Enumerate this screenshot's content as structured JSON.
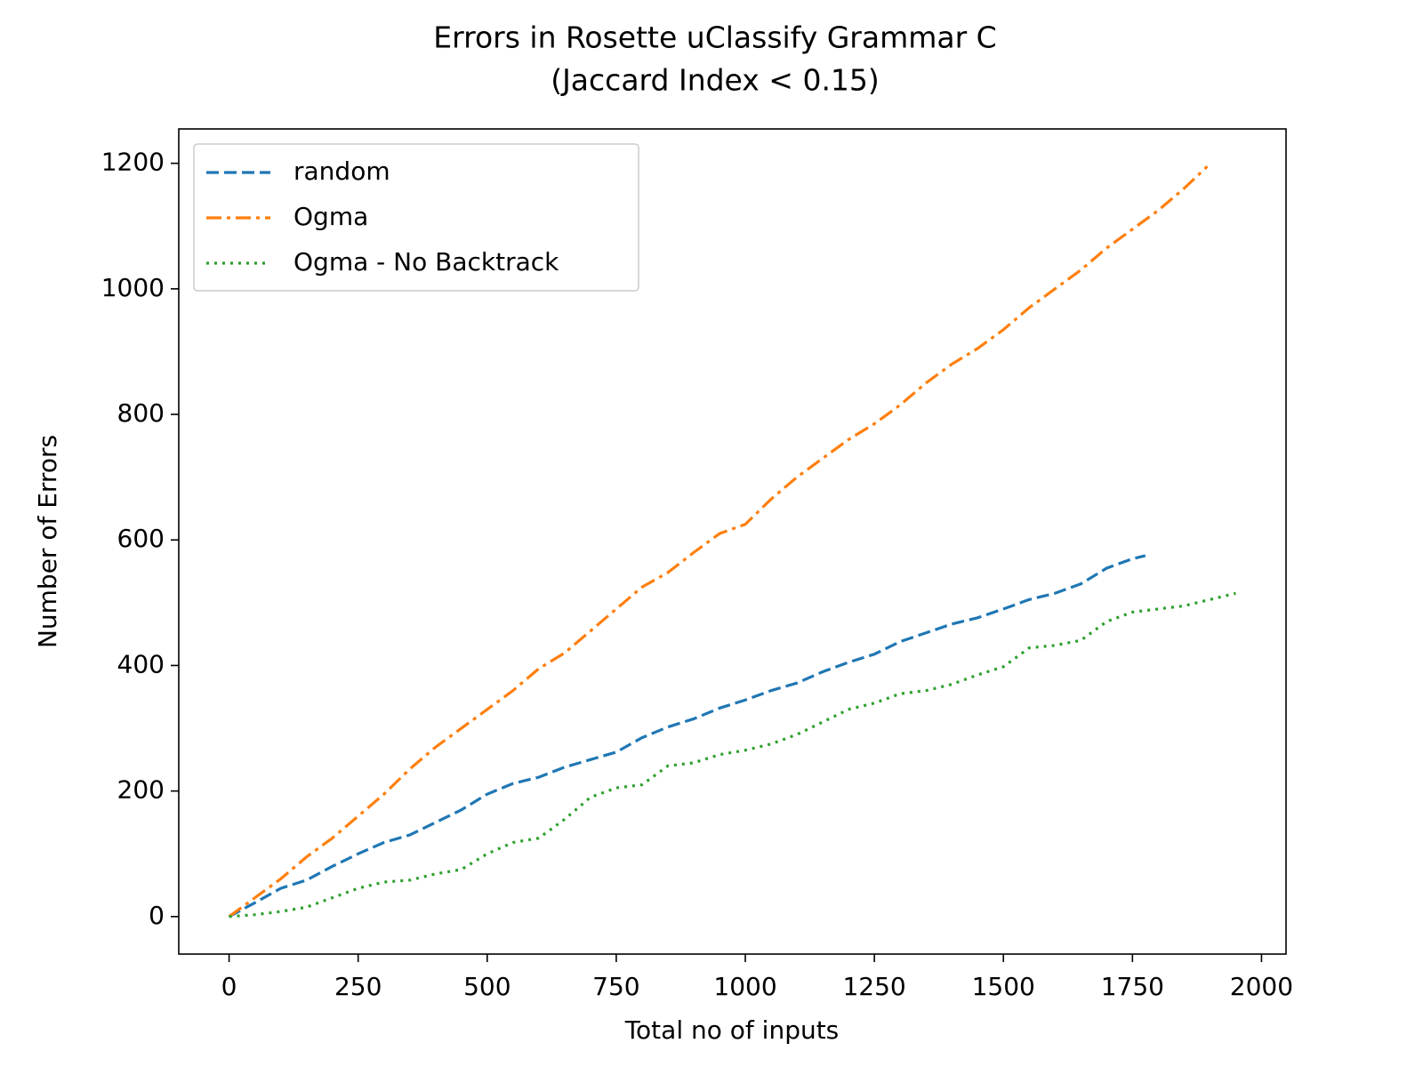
{
  "chart_data": {
    "type": "line",
    "title": "Errors in Rosette uClassify Grammar C",
    "subtitle": "(Jaccard Index < 0.15)",
    "x_label": "Total no of inputs",
    "y_label": "Number of Errors",
    "xlim": [
      -97.5,
      2047.5
    ],
    "ylim": [
      -59.75,
      1254.75
    ],
    "xticks": [
      0,
      250,
      500,
      750,
      1000,
      1250,
      1500,
      1750,
      2000
    ],
    "yticks": [
      0,
      200,
      400,
      600,
      800,
      1000,
      1200
    ],
    "grid": false,
    "legend_position": "upper-left",
    "series": [
      {
        "name": "random",
        "color": "#1f77b4",
        "linestyle": "dashed",
        "x": [
          0,
          50,
          100,
          150,
          200,
          250,
          300,
          350,
          400,
          450,
          500,
          550,
          600,
          650,
          700,
          750,
          800,
          850,
          900,
          950,
          1000,
          1050,
          1100,
          1150,
          1200,
          1250,
          1300,
          1350,
          1400,
          1450,
          1500,
          1550,
          1600,
          1650,
          1700,
          1750,
          1775
        ],
        "values": [
          0,
          22,
          45,
          58,
          80,
          100,
          118,
          130,
          150,
          170,
          195,
          212,
          222,
          238,
          250,
          262,
          285,
          302,
          315,
          332,
          345,
          360,
          372,
          390,
          405,
          418,
          438,
          452,
          466,
          476,
          490,
          505,
          515,
          530,
          555,
          570,
          575
        ]
      },
      {
        "name": "Ogma",
        "color": "#ff7f0e",
        "linestyle": "dashdot",
        "x": [
          0,
          50,
          100,
          150,
          200,
          250,
          300,
          350,
          400,
          450,
          500,
          550,
          600,
          650,
          700,
          750,
          800,
          850,
          900,
          950,
          1000,
          1050,
          1100,
          1150,
          1200,
          1250,
          1300,
          1350,
          1400,
          1450,
          1500,
          1550,
          1600,
          1650,
          1700,
          1750,
          1800,
          1850,
          1895
        ],
        "values": [
          0,
          30,
          60,
          95,
          125,
          160,
          195,
          235,
          270,
          300,
          330,
          360,
          395,
          420,
          455,
          490,
          525,
          548,
          580,
          610,
          625,
          665,
          700,
          730,
          760,
          785,
          815,
          850,
          880,
          905,
          935,
          970,
          1000,
          1030,
          1065,
          1095,
          1125,
          1160,
          1195
        ]
      },
      {
        "name": "Ogma - No Backtrack",
        "color": "#2ca02c",
        "linestyle": "dotted",
        "x": [
          0,
          50,
          100,
          150,
          200,
          250,
          300,
          350,
          400,
          450,
          500,
          550,
          600,
          650,
          700,
          750,
          800,
          850,
          900,
          950,
          1000,
          1050,
          1100,
          1150,
          1200,
          1250,
          1300,
          1350,
          1400,
          1450,
          1500,
          1550,
          1600,
          1650,
          1700,
          1750,
          1800,
          1850,
          1900,
          1950
        ],
        "values": [
          0,
          3,
          8,
          15,
          30,
          45,
          55,
          58,
          68,
          75,
          100,
          118,
          125,
          155,
          190,
          205,
          210,
          240,
          245,
          258,
          265,
          275,
          290,
          310,
          330,
          340,
          355,
          360,
          370,
          385,
          398,
          428,
          432,
          440,
          470,
          485,
          490,
          495,
          505,
          515
        ]
      }
    ]
  }
}
